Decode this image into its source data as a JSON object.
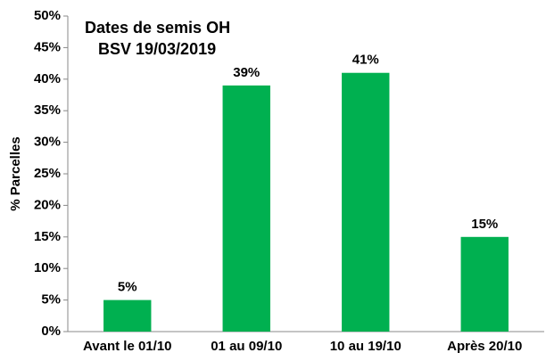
{
  "chart_data": {
    "type": "bar",
    "title": "Dates de semis OH",
    "subtitle": "BSV 19/03/2019",
    "y_label": "% Parcelles",
    "categories": [
      "Avant le 01/10",
      "01 au 09/10",
      "10 au 19/10",
      "Après 20/10"
    ],
    "values": [
      5,
      39,
      41,
      15
    ],
    "value_labels": [
      "5%",
      "39%",
      "41%",
      "15%"
    ],
    "color": "#00b050",
    "ylim": [
      0,
      50
    ],
    "yticks": [
      {
        "value": 0,
        "label": "0%"
      },
      {
        "value": 5,
        "label": "5%"
      },
      {
        "value": 10,
        "label": "10%"
      },
      {
        "value": 15,
        "label": "15%"
      },
      {
        "value": 20,
        "label": "20%"
      },
      {
        "value": 25,
        "label": "25%"
      },
      {
        "value": 30,
        "label": "30%"
      },
      {
        "value": 35,
        "label": "35%"
      },
      {
        "value": 40,
        "label": "40%"
      },
      {
        "value": 45,
        "label": "45%"
      },
      {
        "value": 50,
        "label": "50%"
      }
    ],
    "grid": false
  }
}
